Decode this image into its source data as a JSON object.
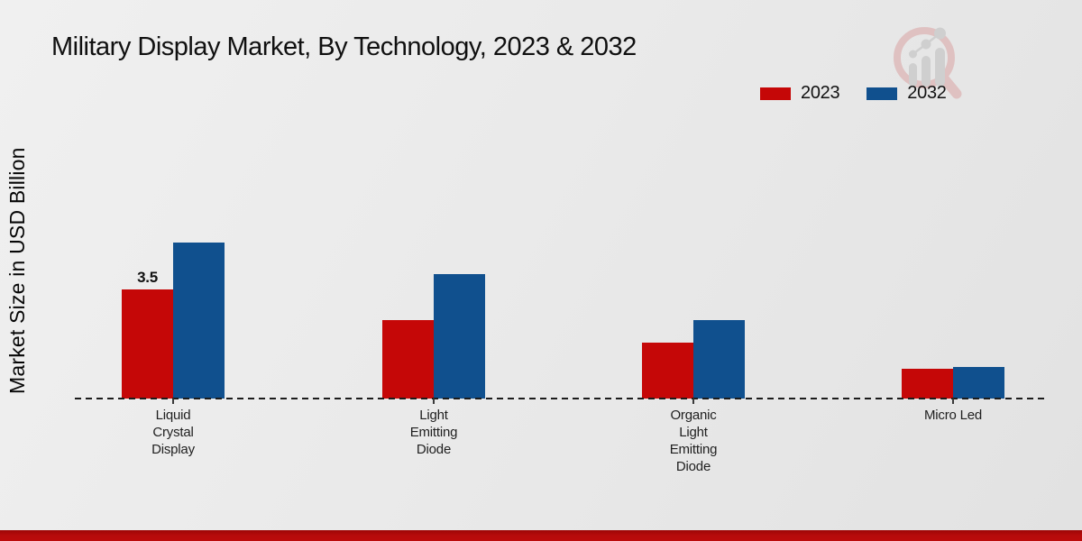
{
  "title": "Military Display Market, By Technology, 2023 & 2032",
  "watermark": {
    "icon": "magnifier-growth-chart-logo"
  },
  "colors": {
    "series_2023": "#c50707",
    "series_2032": "#10508e",
    "footer_band": "#b50b0b",
    "baseline": "#1c1c1c",
    "background": "#e9e9e9"
  },
  "chart_data": {
    "type": "bar",
    "title": "Military Display Market, By Technology, 2023 & 2032",
    "xlabel": "",
    "ylabel": "Market Size in USD Billion",
    "categories": [
      "Liquid Crystal Display",
      "Light Emitting Diode",
      "Organic Light Emitting Diode",
      "Micro Led"
    ],
    "category_lines": [
      [
        "Liquid",
        "Crystal",
        "Display"
      ],
      [
        "Light",
        "Emitting",
        "Diode"
      ],
      [
        "Organic",
        "Light",
        "Emitting",
        "Diode"
      ],
      [
        "Micro Led"
      ]
    ],
    "series": [
      {
        "name": "2023",
        "color": "#c50707",
        "values": [
          3.5,
          2.5,
          1.8,
          0.95
        ]
      },
      {
        "name": "2032",
        "color": "#10508e",
        "values": [
          5.0,
          4.0,
          2.5,
          1.0
        ]
      }
    ],
    "bar_value_labels": [
      {
        "series_index": 0,
        "category_index": 0,
        "text": "3.5"
      }
    ],
    "legend_position": "top-right",
    "grid": false,
    "baseline_style": "dashed",
    "ylim": [
      0,
      5.5
    ]
  }
}
